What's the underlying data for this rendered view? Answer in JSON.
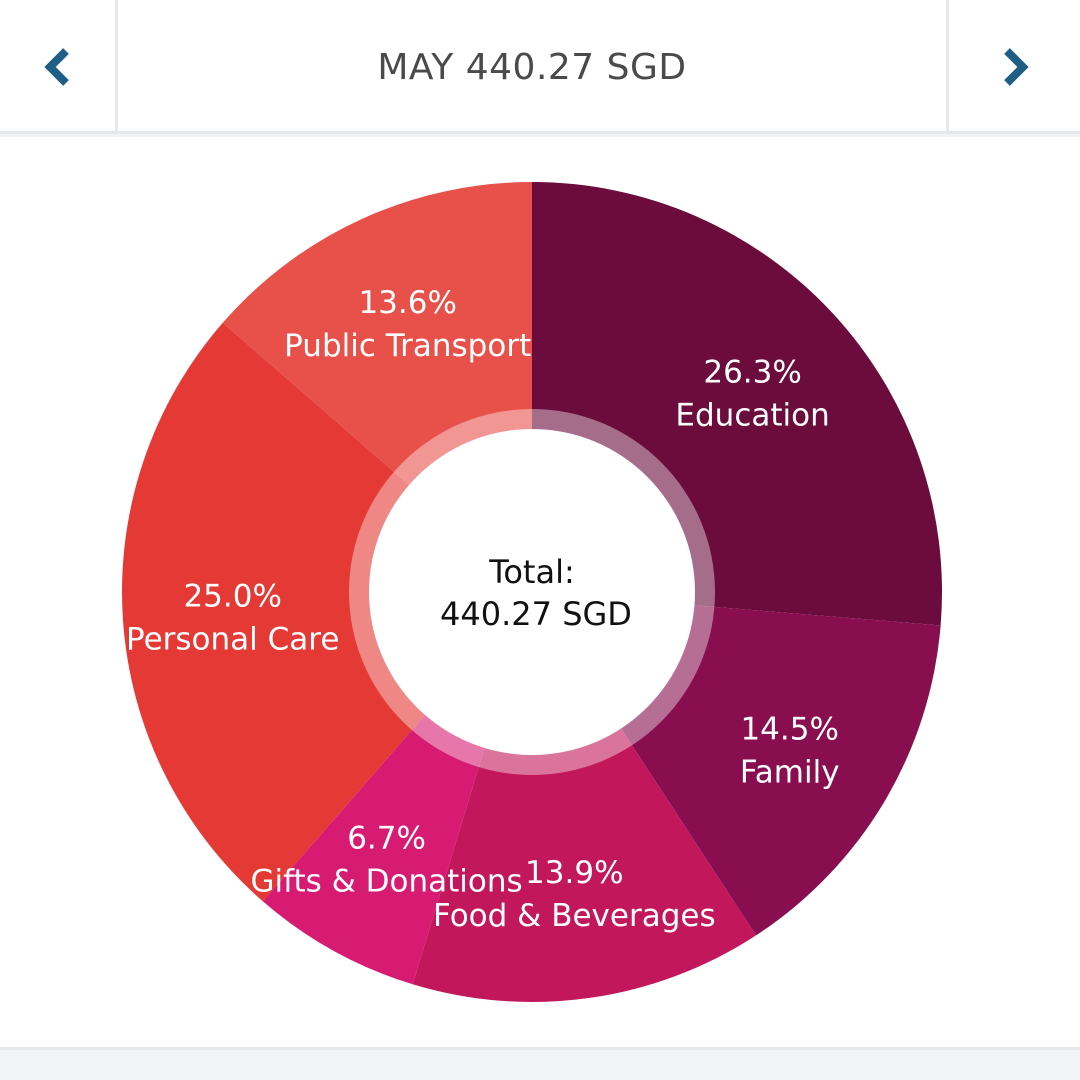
{
  "header": {
    "month": "MAY",
    "total": "440.27 SGD"
  },
  "center": {
    "label": "Total:",
    "value": "440.27 SGD"
  },
  "colors": {
    "nav_arrow": "#1f5f86"
  },
  "chart_data": {
    "type": "pie",
    "donut": true,
    "slices": [
      {
        "label": "Education",
        "percent": 26.3,
        "percent_text": "26.3%",
        "color": "#6b0c3d"
      },
      {
        "label": "Family",
        "percent": 14.5,
        "percent_text": "14.5%",
        "color": "#880e4f"
      },
      {
        "label": "Food & Beverages",
        "percent": 13.9,
        "percent_text": "13.9%",
        "color": "#c2185b"
      },
      {
        "label": "Gifts & Donations",
        "percent": 6.7,
        "percent_text": "6.7%",
        "color": "#d81b72"
      },
      {
        "label": "Personal Care",
        "percent": 25.0,
        "percent_text": "25.0%",
        "color": "#e53935"
      },
      {
        "label": "Public Transport",
        "percent": 13.6,
        "percent_text": "13.6%",
        "color": "#e8504a"
      }
    ]
  }
}
